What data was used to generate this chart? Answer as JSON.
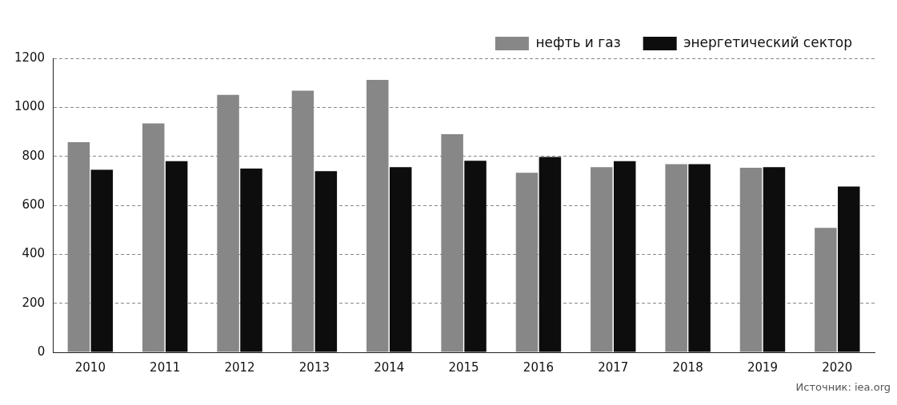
{
  "chart_data": {
    "type": "bar",
    "categories": [
      "2010",
      "2011",
      "2012",
      "2013",
      "2014",
      "2015",
      "2016",
      "2017",
      "2018",
      "2019",
      "2020"
    ],
    "series": [
      {
        "name": "нефть и газ",
        "color": "#878787",
        "values": [
          858,
          934,
          1051,
          1068,
          1112,
          890,
          733,
          756,
          768,
          753,
          508
        ]
      },
      {
        "name": "энергетический сектор",
        "color": "#0d0d0d",
        "values": [
          745,
          780,
          750,
          739,
          756,
          782,
          797,
          780,
          768,
          756,
          677
        ]
      }
    ],
    "ylim": [
      0,
      1200
    ],
    "yticks": [
      0,
      200,
      400,
      600,
      800,
      1000,
      1200
    ],
    "grid": "y",
    "legend": "top right",
    "annotations": [
      "Источник: iea.org"
    ]
  }
}
